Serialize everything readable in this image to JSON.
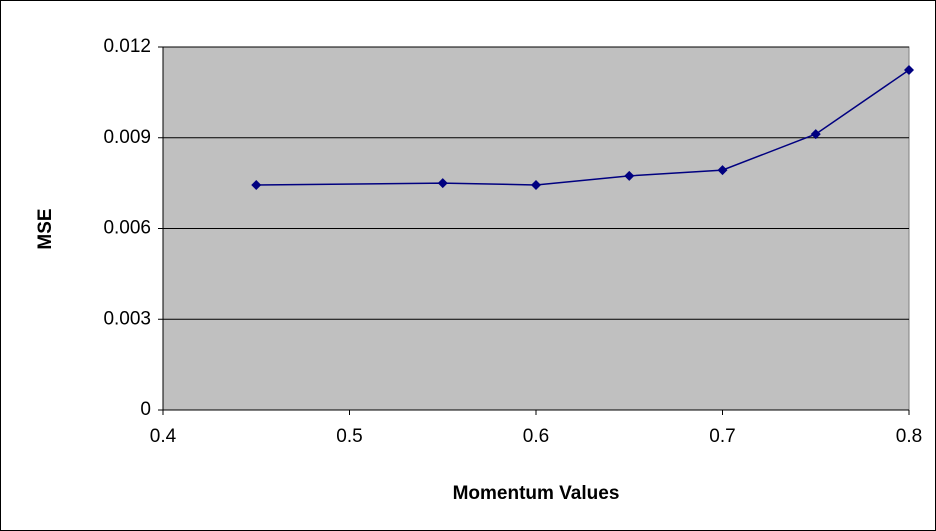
{
  "chart_data": {
    "type": "line",
    "x_label": "Momentum Values",
    "y_label": "MSE",
    "x": [
      0.45,
      0.55,
      0.6,
      0.65,
      0.7,
      0.75,
      0.8
    ],
    "series": [
      {
        "color": "#000080",
        "values": [
          0.00744,
          0.0075,
          0.00744,
          0.00774,
          0.00793,
          0.00912,
          0.01124
        ]
      }
    ],
    "xlim": [
      0.4,
      0.8
    ],
    "xticks": [
      0.4,
      0.5,
      0.6,
      0.7,
      0.8
    ],
    "ylim": [
      0,
      0.012
    ],
    "yticks": [
      0,
      0.003,
      0.006,
      0.009,
      0.012
    ],
    "grid": true,
    "plot_background": "#c0c0c0"
  }
}
